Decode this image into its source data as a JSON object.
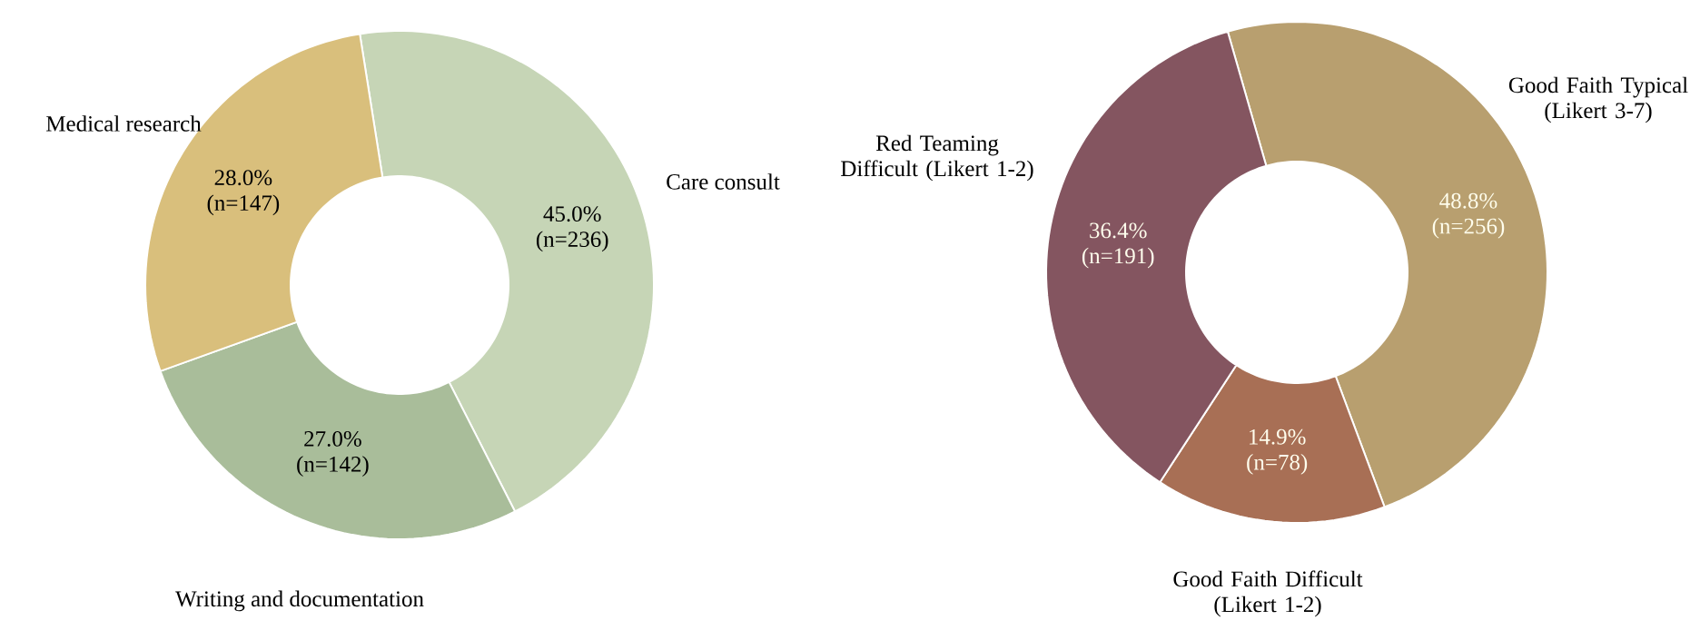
{
  "chart_data": [
    {
      "type": "donut",
      "categories": [
        "Care consult",
        "Writing and documentation",
        "Medical research"
      ],
      "values": [
        45.0,
        27.0,
        28.0
      ],
      "colors": [
        "#c6d5b6",
        "#a9bd9a",
        "#d9bf7c"
      ],
      "value_labels": [
        "45.0% (n=236)",
        "27.0% (n=142)",
        "28.0% (n=147)"
      ],
      "legend": false
    },
    {
      "type": "donut",
      "categories": [
        "Good Faith Typical (Likert 3-7)",
        "Good Faith Difficult (Likert 1-2)",
        "Red Teaming Difficult (Likert 1-2)"
      ],
      "values": [
        48.8,
        14.9,
        36.4
      ],
      "colors": [
        "#b89f6f",
        "#a86f55",
        "#845560"
      ],
      "value_labels": [
        "48.8% (n=256)",
        "14.9% (n=78)",
        "36.4% (n=191)"
      ],
      "legend": false
    }
  ]
}
